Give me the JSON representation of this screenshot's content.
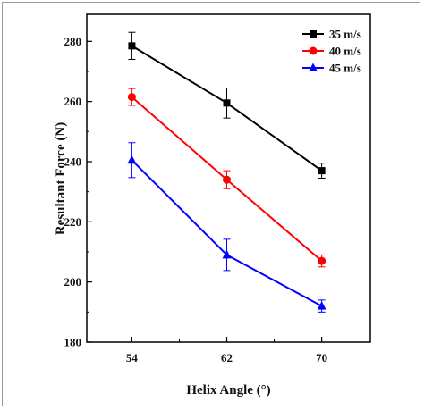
{
  "chart_data": {
    "type": "line",
    "xlabel": "Helix Angle (°)",
    "ylabel": "Resultant Force (N)",
    "x": [
      54,
      62,
      70
    ],
    "x_tick_labels": [
      "54",
      "62",
      "70"
    ],
    "y_ticks": [
      180,
      200,
      220,
      240,
      260,
      280
    ],
    "xlim": [
      50.2,
      74.1
    ],
    "ylim": [
      180,
      289
    ],
    "legend_position": "top-right",
    "grid": false,
    "series": [
      {
        "name": "35 m/s",
        "marker": "square",
        "color": "#000000",
        "values": [
          278.5,
          259.5,
          237.0
        ],
        "errors": [
          4.5,
          5.0,
          2.5
        ]
      },
      {
        "name": "40 m/s",
        "marker": "circle",
        "color": "#ff0000",
        "values": [
          261.5,
          234.0,
          207.0
        ],
        "errors": [
          2.8,
          3.0,
          2.0
        ]
      },
      {
        "name": "45 m/s",
        "marker": "triangle",
        "color": "#0000ff",
        "values": [
          240.5,
          209.0,
          192.0
        ],
        "errors": [
          5.8,
          5.2,
          2.0
        ]
      }
    ]
  }
}
